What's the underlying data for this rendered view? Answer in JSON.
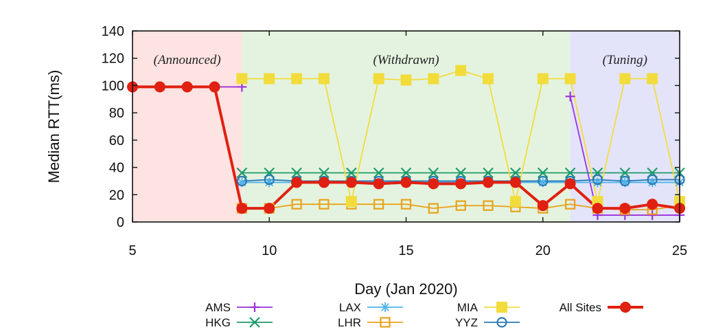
{
  "chart_data": {
    "type": "line",
    "title": "",
    "xlabel": "Day (Jan 2020)",
    "ylabel": "Median RTT(ms)",
    "xlim": [
      5,
      25
    ],
    "ylim": [
      0,
      140
    ],
    "x_ticks": [
      5,
      10,
      15,
      20,
      25
    ],
    "y_ticks": [
      0,
      20,
      40,
      60,
      80,
      100,
      120,
      140
    ],
    "grid": false,
    "legend_position": "bottom",
    "phases": [
      {
        "label": "(Announced)",
        "x_start": 5,
        "x_end": 9,
        "color": "#fde3e1"
      },
      {
        "label": "(Withdrawn)",
        "x_start": 9,
        "x_end": 21,
        "color": "#e4f3df"
      },
      {
        "label": "(Tuning)",
        "x_start": 21,
        "x_end": 25,
        "color": "#e3e4fa"
      }
    ],
    "series": [
      {
        "name": "AMS",
        "color": "#9b30d9",
        "marker": "plus",
        "points": [
          [
            5,
            99
          ],
          [
            6,
            99
          ],
          [
            7,
            99
          ],
          [
            8,
            99
          ],
          [
            9,
            99
          ],
          [
            21,
            92
          ],
          [
            22,
            5
          ],
          [
            23,
            5
          ],
          [
            24,
            5
          ],
          [
            25,
            5
          ]
        ]
      },
      {
        "name": "HKG",
        "color": "#1b9a6a",
        "marker": "x",
        "points": [
          [
            9,
            36
          ],
          [
            10,
            36
          ],
          [
            11,
            36
          ],
          [
            12,
            36
          ],
          [
            13,
            36
          ],
          [
            14,
            36
          ],
          [
            15,
            36
          ],
          [
            16,
            36
          ],
          [
            17,
            36
          ],
          [
            18,
            36
          ],
          [
            19,
            36
          ],
          [
            20,
            36
          ],
          [
            21,
            36
          ],
          [
            22,
            36
          ],
          [
            23,
            36
          ],
          [
            24,
            36
          ],
          [
            25,
            36
          ]
        ]
      },
      {
        "name": "LAX",
        "color": "#4fb3ea",
        "marker": "star",
        "points": [
          [
            9,
            29
          ],
          [
            10,
            29
          ],
          [
            11,
            29
          ],
          [
            12,
            29
          ],
          [
            13,
            29
          ],
          [
            14,
            29
          ],
          [
            15,
            29
          ],
          [
            16,
            29
          ],
          [
            17,
            29
          ],
          [
            18,
            29
          ],
          [
            19,
            29
          ],
          [
            20,
            29
          ],
          [
            21,
            29
          ],
          [
            22,
            29
          ],
          [
            23,
            29
          ],
          [
            24,
            29
          ],
          [
            25,
            29
          ]
        ]
      },
      {
        "name": "LHR",
        "color": "#e8a21a",
        "marker": "square-open",
        "points": [
          [
            9,
            10
          ],
          [
            10,
            10
          ],
          [
            11,
            13
          ],
          [
            12,
            13
          ],
          [
            13,
            13
          ],
          [
            14,
            13
          ],
          [
            15,
            13
          ],
          [
            16,
            10
          ],
          [
            17,
            12
          ],
          [
            18,
            12
          ],
          [
            19,
            11
          ],
          [
            20,
            10
          ],
          [
            21,
            13
          ],
          [
            22,
            10
          ],
          [
            23,
            9
          ],
          [
            24,
            9
          ],
          [
            25,
            12
          ]
        ]
      },
      {
        "name": "MIA",
        "color": "#f2dc3c",
        "marker": "square",
        "points": [
          [
            9,
            105
          ],
          [
            10,
            105
          ],
          [
            11,
            105
          ],
          [
            12,
            105
          ],
          [
            13,
            15
          ],
          [
            14,
            105
          ],
          [
            15,
            104
          ],
          [
            16,
            105
          ],
          [
            17,
            111
          ],
          [
            18,
            105
          ],
          [
            19,
            15
          ],
          [
            20,
            105
          ],
          [
            21,
            105
          ],
          [
            22,
            15
          ],
          [
            23,
            105
          ],
          [
            24,
            105
          ],
          [
            25,
            15
          ]
        ]
      },
      {
        "name": "YYZ",
        "color": "#2a7ab8",
        "marker": "circle-open",
        "points": [
          [
            9,
            30
          ],
          [
            10,
            31
          ],
          [
            11,
            30
          ],
          [
            12,
            30
          ],
          [
            13,
            30
          ],
          [
            14,
            30
          ],
          [
            15,
            30
          ],
          [
            16,
            30
          ],
          [
            17,
            30
          ],
          [
            18,
            30
          ],
          [
            19,
            30
          ],
          [
            20,
            30
          ],
          [
            21,
            30
          ],
          [
            22,
            31
          ],
          [
            23,
            30
          ],
          [
            24,
            31
          ],
          [
            25,
            31
          ]
        ]
      },
      {
        "name": "All Sites",
        "color": "#e02010",
        "marker": "circle",
        "points": [
          [
            5,
            99
          ],
          [
            6,
            99
          ],
          [
            7,
            99
          ],
          [
            8,
            99
          ],
          [
            9,
            10
          ],
          [
            10,
            10
          ],
          [
            11,
            29
          ],
          [
            12,
            29
          ],
          [
            13,
            29
          ],
          [
            14,
            28
          ],
          [
            15,
            29
          ],
          [
            16,
            28
          ],
          [
            17,
            28
          ],
          [
            18,
            29
          ],
          [
            19,
            29
          ],
          [
            20,
            12
          ],
          [
            21,
            28
          ],
          [
            22,
            10
          ],
          [
            23,
            10
          ],
          [
            24,
            13
          ],
          [
            25,
            10
          ]
        ]
      }
    ]
  }
}
